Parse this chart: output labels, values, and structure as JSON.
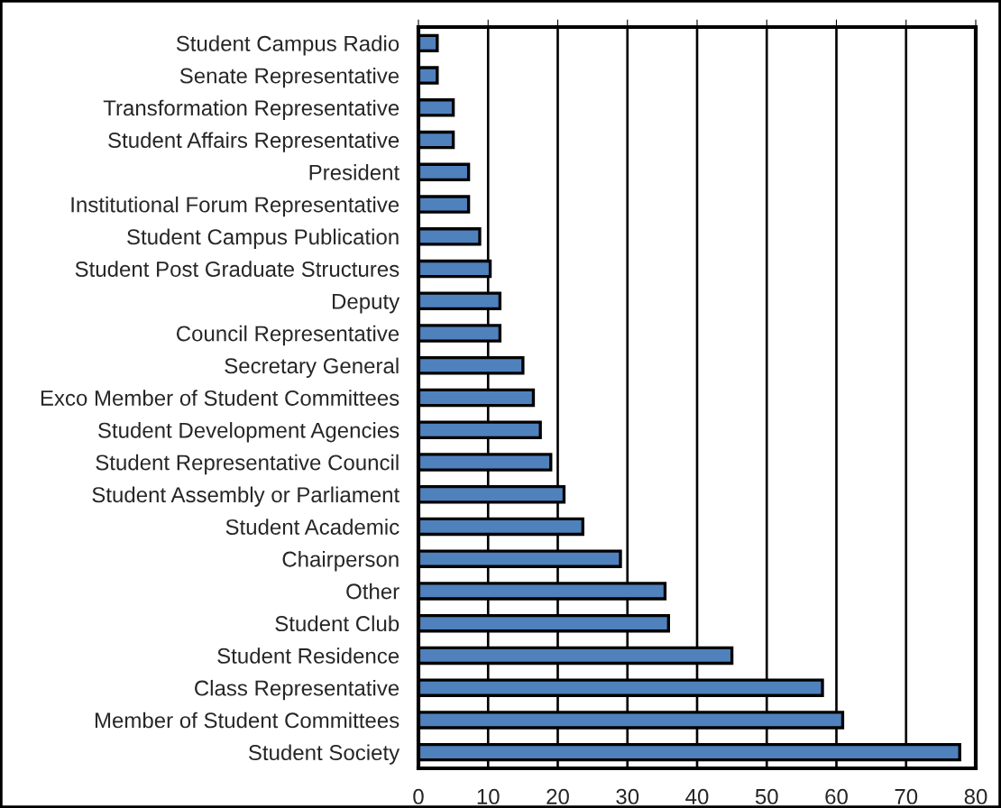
{
  "chart_data": {
    "type": "bar",
    "orientation": "horizontal",
    "categories": [
      "Student Campus Radio",
      "Senate Representative",
      "Transformation Representative",
      "Student Affairs Representative",
      "President",
      "Institutional Forum Representative",
      "Student Campus Publication",
      "Student Post Graduate Structures",
      "Deputy",
      "Council Representative",
      "Secretary General",
      "Exco Member of Student Committees",
      "Student Development Agencies",
      "Student Representative Council",
      "Student Assembly or Parliament",
      "Student Academic",
      "Chairperson",
      "Other",
      "Student Club",
      "Student Residence",
      "Class Representative",
      "Member of Student Committees",
      "Student Society"
    ],
    "values": [
      2.7,
      2.7,
      5.0,
      5.0,
      7.2,
      7.2,
      8.8,
      10.3,
      11.7,
      11.7,
      15.0,
      16.5,
      17.5,
      19.0,
      20.9,
      23.6,
      29.0,
      35.4,
      35.9,
      45.0,
      58.0,
      60.9,
      77.7
    ],
    "color": "#4f81bd",
    "xlim": [
      0,
      80
    ],
    "xticks": [
      0,
      10,
      20,
      30,
      40,
      50,
      60,
      70,
      80
    ],
    "grid": "x"
  }
}
